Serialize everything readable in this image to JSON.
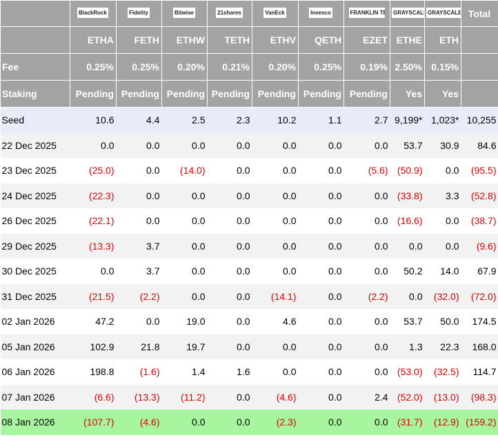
{
  "header": {
    "logos": [
      "BlackRock",
      "Fidelity",
      "Bitwise",
      "21shares",
      "VanEck",
      "Invesco",
      "FRANKLIN TEMPLETON",
      "GRAYSCALE",
      "GRAYSCALE"
    ],
    "total_label": "Total",
    "tickers": [
      "ETHA",
      "FETH",
      "ETHW",
      "TETH",
      "ETHV",
      "QETH",
      "EZET",
      "ETHE",
      "ETH"
    ],
    "fee": {
      "label": "Fee",
      "values": [
        "0.25%",
        "0.25%",
        "0.20%",
        "0.21%",
        "0.20%",
        "0.25%",
        "0.19%",
        "2.50%",
        "0.15%"
      ]
    },
    "staking": {
      "label": "Staking",
      "values": [
        "Pending",
        "Pending",
        "Pending",
        "Pending",
        "Pending",
        "Pending",
        "Pending",
        "Yes",
        "Yes"
      ]
    }
  },
  "rows": [
    {
      "label": "Seed",
      "values": [
        "10.6",
        "4.4",
        "2.5",
        "2.3",
        "10.2",
        "1.1",
        "2.7",
        "9,199*",
        "1,023*",
        "10,255"
      ]
    },
    {
      "label": "22 Dec 2025",
      "values": [
        "0.0",
        "0.0",
        "0.0",
        "0.0",
        "0.0",
        "0.0",
        "0.0",
        "53.7",
        "30.9",
        "84.6"
      ]
    },
    {
      "label": "23 Dec 2025",
      "values": [
        "(25.0)",
        "0.0",
        "(14.0)",
        "0.0",
        "0.0",
        "0.0",
        "(5.6)",
        "(50.9)",
        "0.0",
        "(95.5)"
      ]
    },
    {
      "label": "24 Dec 2025",
      "values": [
        "(22.3)",
        "0.0",
        "0.0",
        "0.0",
        "0.0",
        "0.0",
        "0.0",
        "(33.8)",
        "3.3",
        "(52.8)"
      ]
    },
    {
      "label": "26 Dec 2025",
      "values": [
        "(22.1)",
        "0.0",
        "0.0",
        "0.0",
        "0.0",
        "0.0",
        "0.0",
        "(16.6)",
        "0.0",
        "(38.7)"
      ]
    },
    {
      "label": "29 Dec 2025",
      "values": [
        "(13.3)",
        "3.7",
        "0.0",
        "0.0",
        "0.0",
        "0.0",
        "0.0",
        "0.0",
        "0.0",
        "(9.6)"
      ]
    },
    {
      "label": "30 Dec 2025",
      "values": [
        "0.0",
        "3.7",
        "0.0",
        "0.0",
        "0.0",
        "0.0",
        "0.0",
        "50.2",
        "14.0",
        "67.9"
      ]
    },
    {
      "label": "31 Dec 2025",
      "values": [
        "(21.5)",
        "(2.2)",
        "0.0",
        "0.0",
        "(14.1)",
        "0.0",
        "(2.2)",
        "0.0",
        "(32.0)",
        "(72.0)"
      ]
    },
    {
      "label": "02 Jan 2026",
      "values": [
        "47.2",
        "0.0",
        "19.0",
        "0.0",
        "4.6",
        "0.0",
        "0.0",
        "53.7",
        "50.0",
        "174.5"
      ]
    },
    {
      "label": "05 Jan 2026",
      "values": [
        "102.9",
        "21.8",
        "19.7",
        "0.0",
        "0.0",
        "0.0",
        "0.0",
        "1.3",
        "22.3",
        "168.0"
      ]
    },
    {
      "label": "06 Jan 2026",
      "values": [
        "198.8",
        "(1.6)",
        "1.4",
        "1.6",
        "0.0",
        "0.0",
        "0.0",
        "(53.0)",
        "(32.5)",
        "114.7"
      ]
    },
    {
      "label": "07 Jan 2026",
      "values": [
        "(6.6)",
        "(13.3)",
        "(11.2)",
        "0.0",
        "(4.6)",
        "0.0",
        "2.4",
        "(52.0)",
        "(13.0)",
        "(98.3)"
      ]
    },
    {
      "label": "08 Jan 2026",
      "values": [
        "(107.7)",
        "(4.6)",
        "0.0",
        "0.0",
        "(2.3)",
        "0.0",
        "0.0",
        "(31.7)",
        "(12.9)",
        "(159.2)"
      ]
    }
  ]
}
